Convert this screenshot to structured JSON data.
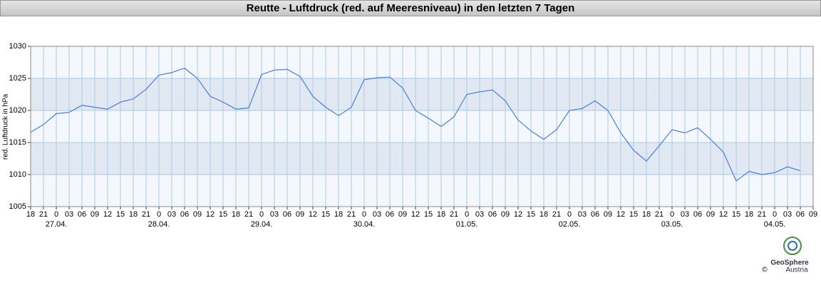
{
  "chart_data": {
    "type": "line",
    "title": "Reutte - Luftdruck (red. auf Meeresniveau) in den letzten 7 Tagen",
    "ylabel": "red. Luftdruck in hPa",
    "ylim": [
      1005,
      1030
    ],
    "yticks": [
      1005,
      1010,
      1015,
      1020,
      1025,
      1030
    ],
    "xlim": [
      0,
      183
    ],
    "xticks": [
      {
        "value": 0,
        "label": "18"
      },
      {
        "value": 3,
        "label": "21"
      },
      {
        "value": 6,
        "label": "0"
      },
      {
        "value": 9,
        "label": "03"
      },
      {
        "value": 12,
        "label": "06"
      },
      {
        "value": 15,
        "label": "09"
      },
      {
        "value": 18,
        "label": "12"
      },
      {
        "value": 21,
        "label": "15"
      },
      {
        "value": 24,
        "label": "18"
      },
      {
        "value": 27,
        "label": "21"
      },
      {
        "value": 30,
        "label": "0"
      },
      {
        "value": 33,
        "label": "03"
      },
      {
        "value": 36,
        "label": "06"
      },
      {
        "value": 39,
        "label": "09"
      },
      {
        "value": 42,
        "label": "12"
      },
      {
        "value": 45,
        "label": "15"
      },
      {
        "value": 48,
        "label": "18"
      },
      {
        "value": 51,
        "label": "21"
      },
      {
        "value": 54,
        "label": "0"
      },
      {
        "value": 57,
        "label": "03"
      },
      {
        "value": 60,
        "label": "06"
      },
      {
        "value": 63,
        "label": "09"
      },
      {
        "value": 66,
        "label": "12"
      },
      {
        "value": 69,
        "label": "15"
      },
      {
        "value": 72,
        "label": "18"
      },
      {
        "value": 75,
        "label": "21"
      },
      {
        "value": 78,
        "label": "0"
      },
      {
        "value": 81,
        "label": "03"
      },
      {
        "value": 84,
        "label": "06"
      },
      {
        "value": 87,
        "label": "09"
      },
      {
        "value": 90,
        "label": "12"
      },
      {
        "value": 93,
        "label": "15"
      },
      {
        "value": 96,
        "label": "18"
      },
      {
        "value": 99,
        "label": "21"
      },
      {
        "value": 102,
        "label": "0"
      },
      {
        "value": 105,
        "label": "03"
      },
      {
        "value": 108,
        "label": "06"
      },
      {
        "value": 111,
        "label": "09"
      },
      {
        "value": 114,
        "label": "12"
      },
      {
        "value": 117,
        "label": "15"
      },
      {
        "value": 120,
        "label": "18"
      },
      {
        "value": 123,
        "label": "21"
      },
      {
        "value": 126,
        "label": "0"
      },
      {
        "value": 129,
        "label": "03"
      },
      {
        "value": 132,
        "label": "06"
      },
      {
        "value": 135,
        "label": "09"
      },
      {
        "value": 138,
        "label": "12"
      },
      {
        "value": 141,
        "label": "15"
      },
      {
        "value": 144,
        "label": "18"
      },
      {
        "value": 147,
        "label": "21"
      },
      {
        "value": 150,
        "label": "0"
      },
      {
        "value": 153,
        "label": "03"
      },
      {
        "value": 156,
        "label": "06"
      },
      {
        "value": 159,
        "label": "09"
      },
      {
        "value": 162,
        "label": "12"
      },
      {
        "value": 165,
        "label": "15"
      },
      {
        "value": 168,
        "label": "18"
      },
      {
        "value": 171,
        "label": "21"
      },
      {
        "value": 174,
        "label": "0"
      },
      {
        "value": 177,
        "label": "03"
      },
      {
        "value": 180,
        "label": "06"
      },
      {
        "value": 183,
        "label": "09"
      }
    ],
    "xdates": [
      {
        "value": 6,
        "label": "27.04."
      },
      {
        "value": 30,
        "label": "28.04."
      },
      {
        "value": 54,
        "label": "29.04."
      },
      {
        "value": 78,
        "label": "30.04."
      },
      {
        "value": 102,
        "label": "01.05."
      },
      {
        "value": 126,
        "label": "02.05."
      },
      {
        "value": 150,
        "label": "03.05."
      },
      {
        "value": 174,
        "label": "04.05."
      }
    ],
    "grid": true,
    "x": [
      0,
      3,
      6,
      9,
      12,
      15,
      18,
      21,
      24,
      27,
      30,
      33,
      36,
      39,
      42,
      45,
      48,
      51,
      54,
      57,
      60,
      63,
      66,
      69,
      72,
      75,
      78,
      81,
      84,
      87,
      90,
      93,
      96,
      99,
      102,
      105,
      108,
      111,
      114,
      117,
      120,
      123,
      126,
      129,
      132,
      135,
      138,
      141,
      144,
      147,
      150,
      153,
      156,
      159,
      162,
      165,
      168,
      171,
      174,
      177,
      180
    ],
    "series": [
      {
        "name": "Luftdruck",
        "color": "#4a7fd8",
        "values": [
          1016.6,
          1017.8,
          1019.5,
          1019.7,
          1020.8,
          1020.5,
          1020.2,
          1021.3,
          1021.8,
          1023.3,
          1025.5,
          1025.9,
          1026.6,
          1025.0,
          1022.2,
          1021.3,
          1020.2,
          1020.4,
          1025.6,
          1026.3,
          1026.4,
          1025.3,
          1022.2,
          1020.5,
          1019.2,
          1020.5,
          1024.8,
          1025.1,
          1025.2,
          1023.5,
          1020.0,
          1018.8,
          1017.5,
          1019.0,
          1022.5,
          1022.9,
          1023.2,
          1021.5,
          1018.5,
          1016.8,
          1015.5,
          1017.0,
          1020.0,
          1020.3,
          1021.5,
          1020.0,
          1016.5,
          1013.8,
          1012.1,
          1014.5,
          1017.0,
          1016.5,
          1017.3,
          1015.5,
          1013.5,
          1009.0,
          1010.5,
          1010.0,
          1010.3,
          1011.2,
          1010.6
        ]
      }
    ]
  },
  "logo": {
    "name": "GeoSphere",
    "sub": "Austria",
    "copyright": "©"
  }
}
